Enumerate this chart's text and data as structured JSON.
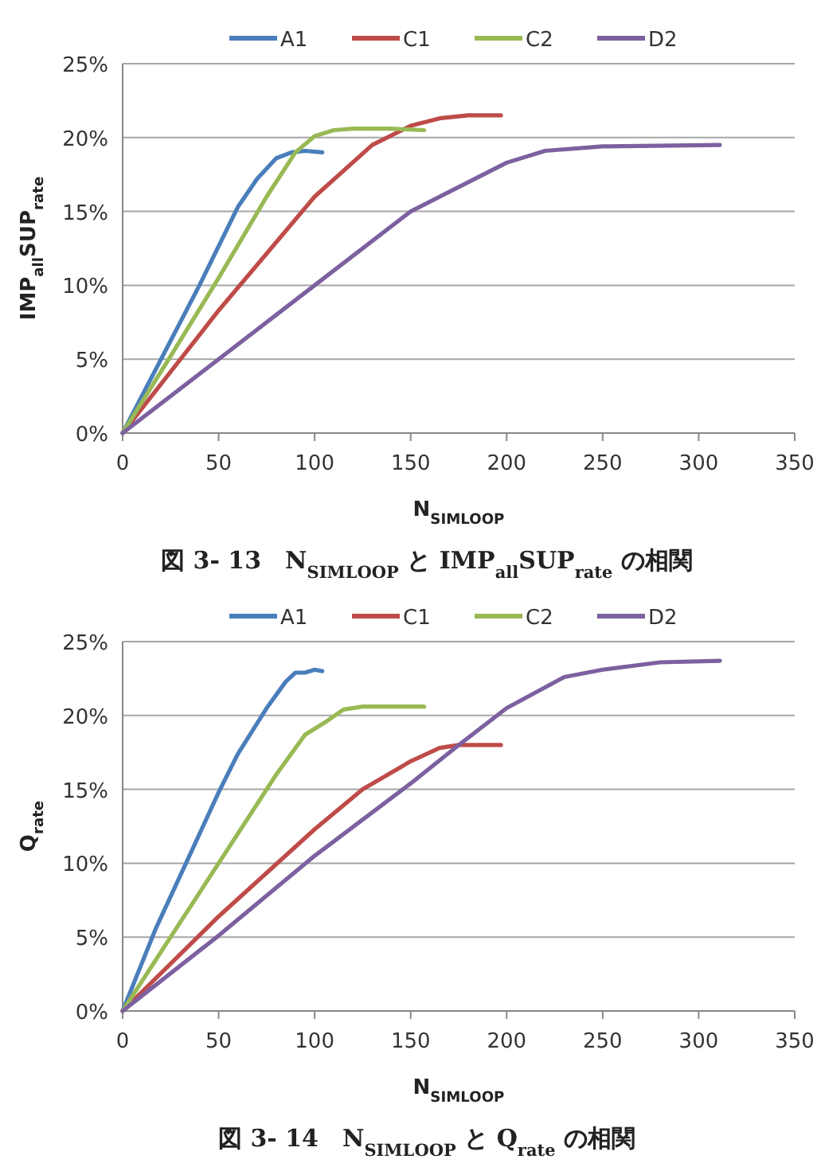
{
  "chart_data": [
    {
      "type": "line",
      "xlabel": "N$_{SIMLOOP}$",
      "ylabel": "IMP$_{all}$SUP$_{rate}$",
      "legend": "top",
      "grid": "y",
      "xlim": [
        0,
        350
      ],
      "xticks": [
        0,
        50,
        100,
        150,
        200,
        250,
        300,
        350
      ],
      "ylim": [
        0,
        25
      ],
      "yticks": [
        {
          "value": 0,
          "label": "0%"
        },
        {
          "value": 5,
          "label": "5%"
        },
        {
          "value": 10,
          "label": "10%"
        },
        {
          "value": 15,
          "label": "15%"
        },
        {
          "value": 20,
          "label": "20%"
        },
        {
          "value": 25,
          "label": "25%"
        }
      ],
      "annotations": [
        "図 3- 13　N$_{SIMLOOP}$ と IMP$_{all}$SUP$_{rate}$ の相関"
      ],
      "series": [
        {
          "name": "A1",
          "color": "#4a7ebb",
          "x": [
            0,
            20,
            40,
            60,
            70,
            80,
            88,
            95,
            104
          ],
          "values": [
            0,
            5,
            10,
            15.3,
            17.2,
            18.6,
            19.0,
            19.1,
            19.0
          ]
        },
        {
          "name": "C1",
          "color": "#be4b48",
          "x": [
            0,
            50,
            100,
            130,
            150,
            165,
            180,
            197
          ],
          "values": [
            0,
            8.3,
            16,
            19.5,
            20.8,
            21.3,
            21.5,
            21.5
          ]
        },
        {
          "name": "C2",
          "color": "#98b954",
          "x": [
            0,
            25,
            50,
            75,
            90,
            100,
            110,
            120,
            140,
            157
          ],
          "values": [
            0,
            5.2,
            10.5,
            16,
            19,
            20.1,
            20.5,
            20.6,
            20.6,
            20.5
          ]
        },
        {
          "name": "D2",
          "color": "#7d60a0",
          "x": [
            0,
            50,
            100,
            150,
            200,
            220,
            250,
            311
          ],
          "values": [
            0,
            5,
            10,
            15,
            18.3,
            19.1,
            19.4,
            19.5
          ]
        }
      ]
    },
    {
      "type": "line",
      "xlabel": "N$_{SIMLOOP}$",
      "ylabel": "Q$_{rate}$",
      "legend": "top",
      "grid": "y",
      "xlim": [
        0,
        350
      ],
      "xticks": [
        0,
        50,
        100,
        150,
        200,
        250,
        300,
        350
      ],
      "ylim": [
        0,
        25
      ],
      "yticks": [
        {
          "value": 0,
          "label": "0%"
        },
        {
          "value": 5,
          "label": "5%"
        },
        {
          "value": 10,
          "label": "10%"
        },
        {
          "value": 15,
          "label": "15%"
        },
        {
          "value": 20,
          "label": "20%"
        },
        {
          "value": 25,
          "label": "25%"
        }
      ],
      "annotations": [
        "図 3- 14　N$_{SIMLOOP}$ と Q$_{rate}$ の相関"
      ],
      "series": [
        {
          "name": "A1",
          "color": "#4a7ebb",
          "x": [
            0,
            17,
            33,
            50,
            60,
            75,
            85,
            90,
            95,
            100,
            104
          ],
          "values": [
            0,
            5.5,
            10,
            14.8,
            17.4,
            20.5,
            22.3,
            22.9,
            22.9,
            23.1,
            23.0
          ]
        },
        {
          "name": "C1",
          "color": "#be4b48",
          "x": [
            0,
            50,
            100,
            125,
            150,
            165,
            175,
            197
          ],
          "values": [
            0,
            6.4,
            12.3,
            15,
            16.9,
            17.8,
            18.0,
            18.0
          ]
        },
        {
          "name": "C2",
          "color": "#98b954",
          "x": [
            0,
            25,
            50,
            80,
            95,
            105,
            115,
            125,
            157
          ],
          "values": [
            0,
            5,
            10,
            16,
            18.7,
            19.5,
            20.4,
            20.6,
            20.6
          ]
        },
        {
          "name": "D2",
          "color": "#7d60a0",
          "x": [
            0,
            50,
            100,
            150,
            175,
            200,
            230,
            250,
            280,
            311
          ],
          "values": [
            0,
            5.1,
            10.5,
            15.4,
            18,
            20.5,
            22.6,
            23.1,
            23.6,
            23.7
          ]
        }
      ]
    }
  ]
}
